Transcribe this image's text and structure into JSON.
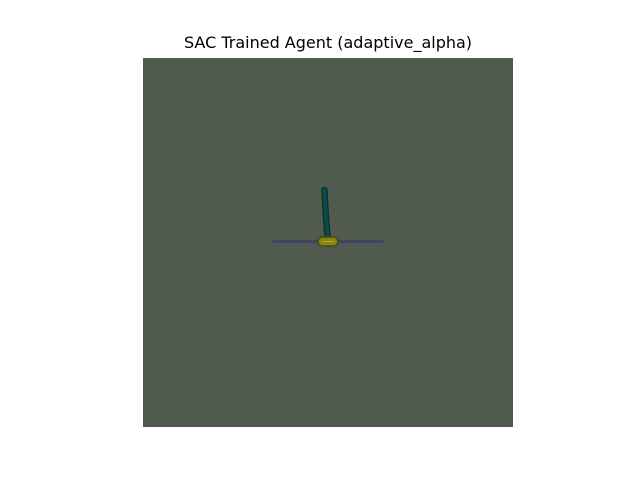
{
  "figure": {
    "title": "SAC Trained Agent (adaptive_alpha)"
  },
  "scene": {
    "environment": "cartpole-render",
    "colors": {
      "background": "#515a4f",
      "rail": "#3d4660",
      "cart_fill": "#8a8414",
      "cart_outline": "#4a4708",
      "pole": "#0b4a48",
      "pole_outline": "#063231"
    }
  }
}
